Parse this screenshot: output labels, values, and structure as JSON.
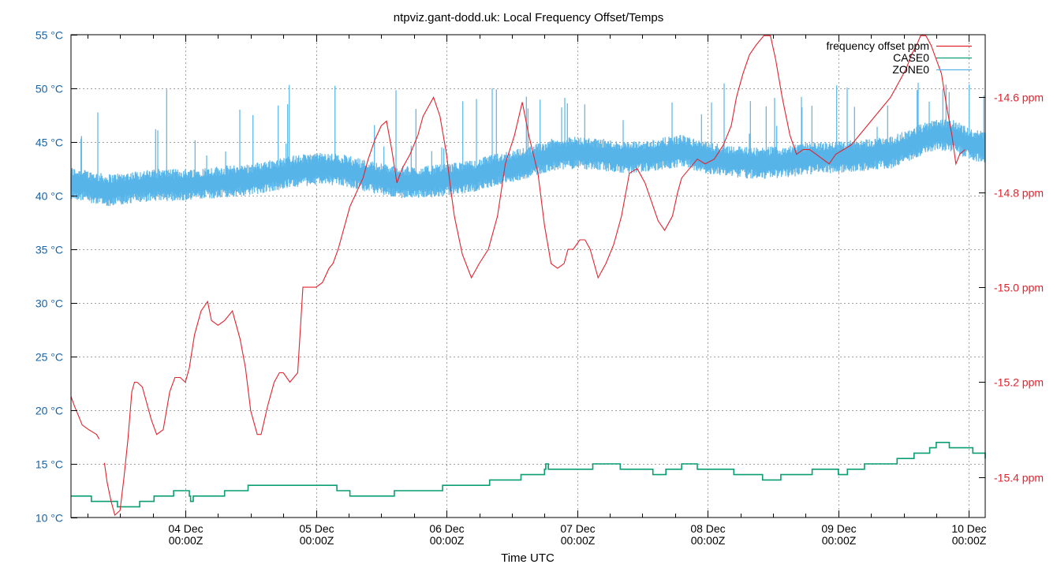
{
  "chart_data": {
    "type": "line",
    "title": "ntpviz.gant-dodd.uk: Local Frequency Offset/Temps",
    "xlabel": "Time UTC",
    "ylabel_left": "",
    "ylabel_right": "",
    "grid": true,
    "legend_position": "top-right, inside",
    "x_tick_labels": [
      [
        "04 Dec",
        "00:00Z"
      ],
      [
        "05 Dec",
        "00:00Z"
      ],
      [
        "06 Dec",
        "00:00Z"
      ],
      [
        "07 Dec",
        "00:00Z"
      ],
      [
        "08 Dec",
        "00:00Z"
      ],
      [
        "09 Dec",
        "00:00Z"
      ],
      [
        "10 Dec",
        "00:00Z"
      ]
    ],
    "x_range_days": [
      -0.876,
      6.125
    ],
    "y_left": {
      "unit": "°C",
      "range": [
        10,
        55
      ],
      "ticks": [
        "10 °C",
        "15 °C",
        "20 °C",
        "25 °C",
        "30 °C",
        "35 °C",
        "40 °C",
        "45 °C",
        "50 °C",
        "55 °C"
      ],
      "tick_values": [
        10,
        15,
        20,
        25,
        30,
        35,
        40,
        45,
        50,
        55
      ]
    },
    "y_right": {
      "unit": "ppm",
      "range": [
        -15.485,
        -14.468
      ],
      "ticks": [
        "-14.6 ppm",
        "-14.8 ppm",
        "-15.0 ppm",
        "-15.2 ppm",
        "-15.4 ppm"
      ],
      "tick_values": [
        -14.6,
        -14.8,
        -15.0,
        -15.2,
        -15.4
      ]
    },
    "legend": [
      "frequency offset ppm",
      "CASE0",
      "ZONE0"
    ],
    "series": [
      {
        "name": "frequency offset ppm",
        "axis": "right",
        "color": "#e0242f",
        "x_days": [
          -0.876,
          -0.85,
          -0.82,
          -0.79,
          -0.74,
          -0.68,
          -0.66,
          null,
          -0.62,
          -0.6,
          -0.57,
          -0.54,
          -0.5,
          -0.47,
          -0.44,
          -0.41,
          -0.39,
          -0.37,
          -0.33,
          -0.3,
          -0.26,
          -0.22,
          -0.17,
          -0.12,
          -0.08,
          -0.04,
          0,
          0.03,
          0.07,
          0.12,
          0.17,
          0.2,
          0.25,
          0.3,
          0.36,
          0.42,
          0.46,
          0.5,
          0.55,
          0.58,
          0.63,
          0.68,
          0.72,
          0.75,
          0.8,
          0.86,
          0.9,
          0.95,
          1.0,
          1.05,
          1.1,
          1.13,
          1.17,
          1.22,
          1.26,
          1.31,
          1.36,
          1.4,
          1.45,
          1.5,
          1.54,
          1.58,
          1.62,
          1.66,
          1.72,
          1.78,
          1.82,
          1.86,
          1.9,
          1.95,
          2.0,
          2.03,
          2.06,
          2.12,
          2.19,
          2.25,
          2.32,
          2.39,
          2.45,
          2.52,
          2.58,
          2.63,
          2.7,
          2.75,
          2.8,
          2.85,
          2.9,
          2.93,
          2.97,
          3.02,
          3.06,
          3.1,
          3.16,
          3.22,
          3.28,
          3.34,
          3.4,
          3.46,
          3.52,
          3.57,
          3.62,
          3.67,
          3.73,
          3.77,
          3.8,
          3.86,
          3.92,
          3.98,
          4.05,
          4.12,
          4.18,
          4.22,
          4.27,
          4.32,
          4.37,
          4.43,
          4.48,
          4.52,
          4.57,
          4.63,
          4.68,
          4.73,
          4.78,
          4.83,
          4.88,
          4.93,
          4.98,
          5.04,
          5.1,
          5.16,
          5.22,
          5.28,
          5.34,
          5.4,
          5.46,
          5.52,
          5.56,
          5.6,
          5.63,
          5.67,
          5.71,
          5.75,
          5.79,
          5.83,
          5.87,
          5.9,
          5.93,
          5.97,
          6.02,
          6.07,
          6.1,
          6.125
        ],
        "values": [
          -15.23,
          -15.25,
          -15.27,
          -15.29,
          -15.3,
          -15.31,
          -15.32,
          null,
          -15.37,
          -15.41,
          -15.45,
          -15.48,
          -15.47,
          -15.4,
          -15.32,
          -15.22,
          -15.2,
          -15.2,
          -15.21,
          -15.24,
          -15.28,
          -15.31,
          -15.3,
          -15.22,
          -15.19,
          -15.19,
          -15.2,
          -15.17,
          -15.1,
          -15.05,
          -15.03,
          -15.07,
          -15.08,
          -15.07,
          -15.05,
          -15.11,
          -15.17,
          -15.26,
          -15.31,
          -15.31,
          -15.25,
          -15.2,
          -15.18,
          -15.18,
          -15.2,
          -15.18,
          -15.0,
          -15.0,
          -15.0,
          -14.99,
          -14.96,
          -14.95,
          -14.92,
          -14.87,
          -14.83,
          -14.8,
          -14.77,
          -14.73,
          -14.69,
          -14.66,
          -14.65,
          -14.71,
          -14.78,
          -14.75,
          -14.72,
          -14.68,
          -14.64,
          -14.62,
          -14.6,
          -14.64,
          -14.72,
          -14.79,
          -14.85,
          -14.93,
          -14.98,
          -14.95,
          -14.92,
          -14.85,
          -14.74,
          -14.68,
          -14.61,
          -14.68,
          -14.76,
          -14.87,
          -14.95,
          -14.96,
          -14.95,
          -14.92,
          -14.92,
          -14.9,
          -14.9,
          -14.92,
          -14.98,
          -14.95,
          -14.91,
          -14.85,
          -14.76,
          -14.75,
          -14.78,
          -14.82,
          -14.86,
          -14.88,
          -14.85,
          -14.8,
          -14.77,
          -14.75,
          -14.73,
          -14.74,
          -14.73,
          -14.7,
          -14.66,
          -14.6,
          -14.55,
          -14.51,
          -14.49,
          -14.47,
          -14.47,
          -14.52,
          -14.6,
          -14.68,
          -14.72,
          -14.71,
          -14.71,
          -14.72,
          -14.73,
          -14.74,
          -14.72,
          -14.71,
          -14.7,
          -14.68,
          -14.66,
          -14.64,
          -14.62,
          -14.6,
          -14.57,
          -14.54,
          -14.51,
          -14.49,
          -14.47,
          -14.47,
          -14.49,
          -14.52,
          -14.55,
          -14.62,
          -14.68,
          -14.74,
          -14.72,
          -14.71
        ]
      },
      {
        "name": "CASE0",
        "axis": "left",
        "color": "#0a9e73",
        "step": true,
        "x_days": [
          -0.876,
          -0.72,
          -0.52,
          -0.35,
          -0.24,
          -0.09,
          0.03,
          0.04,
          0.06,
          0.09,
          0.3,
          0.48,
          1.16,
          1.26,
          1.6,
          1.97,
          2.33,
          2.57,
          2.75,
          2.76,
          2.78,
          3.12,
          3.33,
          3.58,
          3.68,
          3.8,
          3.92,
          4.2,
          4.4,
          4.42,
          4.56,
          4.8,
          4.92,
          5.0,
          5.07,
          5.2,
          5.45,
          5.58,
          5.7,
          5.75,
          5.85,
          6.03,
          6.125
        ],
        "values": [
          12,
          11.5,
          11,
          11.5,
          12,
          12.5,
          12,
          11.5,
          12,
          12,
          12.5,
          13,
          12.5,
          12,
          12.5,
          13,
          13.5,
          14,
          14.5,
          15,
          14.5,
          15,
          14.5,
          14,
          14.5,
          15,
          14.5,
          14,
          14,
          13.5,
          14,
          14.5,
          14.5,
          14,
          14.5,
          15,
          15.5,
          16,
          16.5,
          17,
          16.5,
          16,
          15.5
        ]
      },
      {
        "name": "ZONE0",
        "axis": "left",
        "color": "#56b4e9",
        "description": "noisy ~30-min samples with frequent upward spikes",
        "x_days": [
          -0.876,
          -0.6,
          -0.4,
          -0.2,
          0,
          0.3,
          0.5,
          0.8,
          1.0,
          1.2,
          1.4,
          1.6,
          1.8,
          2.0,
          2.2,
          2.4,
          2.6,
          2.8,
          3.0,
          3.2,
          3.4,
          3.6,
          3.8,
          4.0,
          4.2,
          4.4,
          4.6,
          4.8,
          5.0,
          5.2,
          5.4,
          5.6,
          5.75,
          5.9,
          6.0,
          6.125
        ],
        "values": [
          41.2,
          40.5,
          40.8,
          41.0,
          41.0,
          41.3,
          41.5,
          42.2,
          42.5,
          42.4,
          41.8,
          41.3,
          41.2,
          41.5,
          41.8,
          42.5,
          43.0,
          43.8,
          44.0,
          43.8,
          43.5,
          43.8,
          44.2,
          43.5,
          43.2,
          43.0,
          43.2,
          43.5,
          43.6,
          43.8,
          44.0,
          45.0,
          45.8,
          45.5,
          44.8,
          44.5
        ],
        "spike_max": 50.7
      }
    ]
  }
}
